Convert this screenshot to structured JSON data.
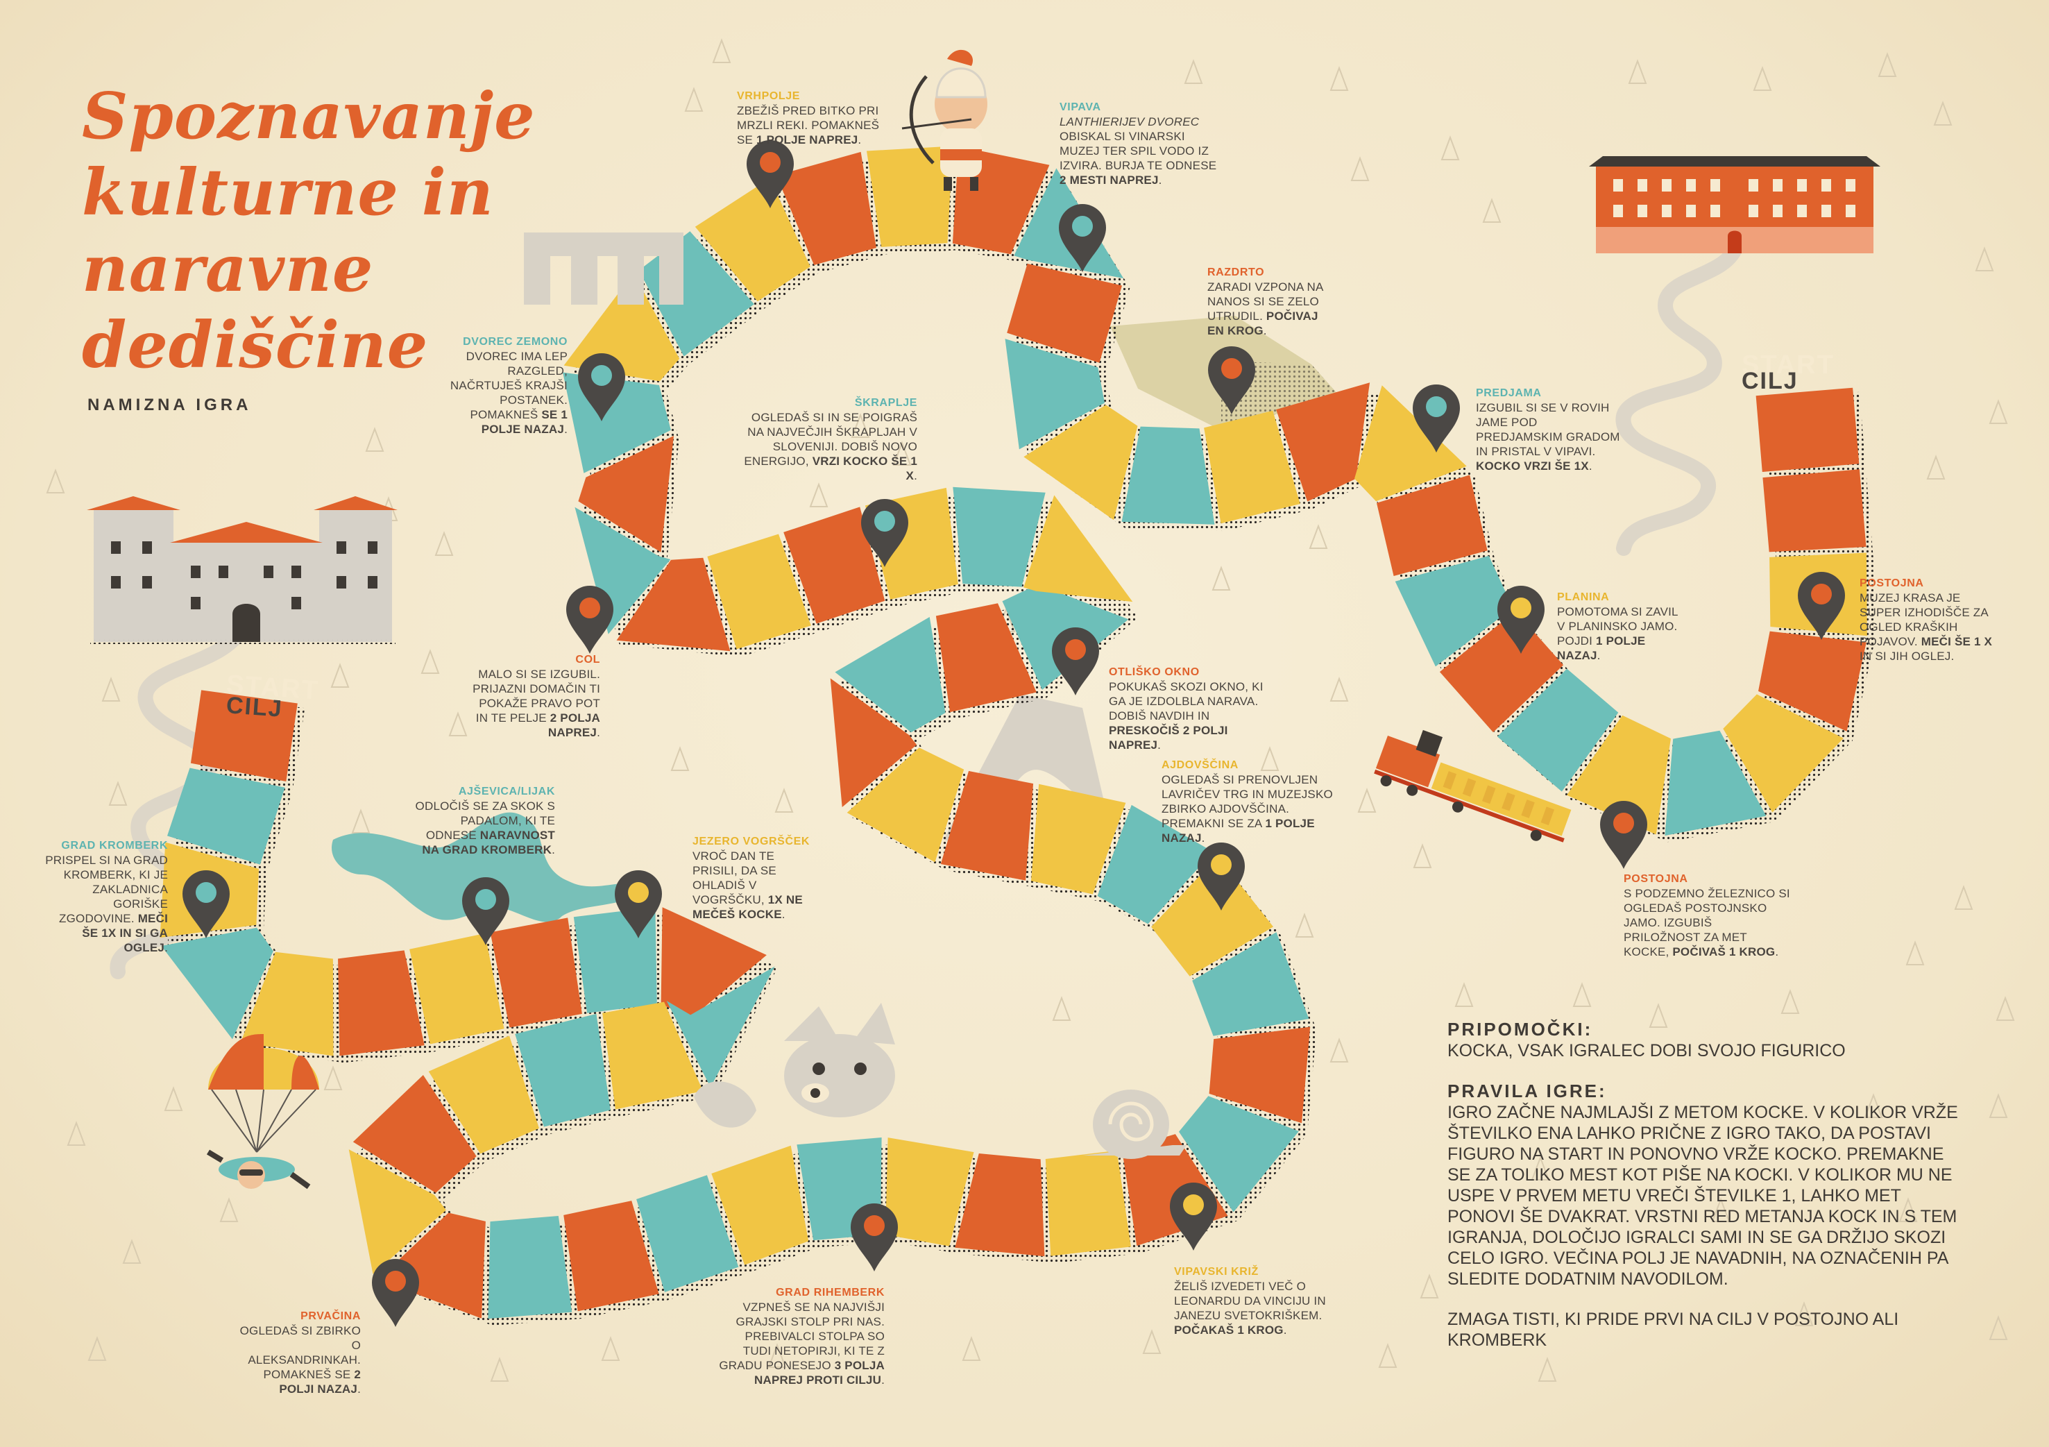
{
  "title": {
    "lines": [
      "Spoznavanje",
      "kulturne in",
      "naravne",
      "dediščine"
    ]
  },
  "subtitle": "NAMIZNA IGRA",
  "endpoints": {
    "start": "START",
    "finish": "CILJ"
  },
  "stops": [
    {
      "name": "VRHPOLJE",
      "desc": "ZBEŽIŠ PRED BITKO PRI MRZLI REKI. POMAKNEŠ SE ",
      "bold": "1 POLJE NAPREJ",
      "after": "."
    },
    {
      "name": "VIPAVA",
      "italic": "LANTHIERIJEV DVOREC",
      "desc": "OBISKAL SI VINARSKI MUZEJ TER SPIL VODO IZ IZVIRA. BURJA TE ODNESE ",
      "bold": "2 MESTI NAPREJ",
      "after": "."
    },
    {
      "name": "RAZDRTO",
      "desc": "ZARADI VZPONA NA NANOS SI SE ZELO UTRUDIL. ",
      "bold": "POČIVAJ EN KROG",
      "after": "."
    },
    {
      "name": "DVOREC ZEMONO",
      "desc": "DVOREC IMA LEP RAZGLED, NAČRTUJEŠ KRAJŠI POSTANEK. POMAKNEŠ ",
      "bold": "SE 1 POLJE NAZAJ",
      "after": "."
    },
    {
      "name": "ŠKRAPLJE",
      "desc": "OGLEDAŠ SI IN SE POIGRAŠ NA NAJVEČJIH ŠKRAPLJAH V SLOVENIJI. DOBIŠ NOVO ENERGIJO, ",
      "bold": "VRZI KOCKO ŠE 1 X",
      "after": "."
    },
    {
      "name": "PREDJAMA",
      "desc": "IZGUBIL SI SE V ROVIH JAME POD PREDJAMSKIM GRADOM IN PRISTAL V VIPAVI. ",
      "bold": "KOCKO VRZI ŠE 1X",
      "after": "."
    },
    {
      "name": "PLANINA",
      "desc": "POMOTOMA SI ZAVIL V PLANINSKO JAMO. POJDI ",
      "bold": "1 POLJE NAZAJ",
      "after": "."
    },
    {
      "name": "POSTOJNA",
      "desc": "MUZEJ KRASA JE SUPER IZHODIŠČE ZA OGLED KRAŠKIH POJAVOV. ",
      "bold": "MEČI ŠE 1 X",
      "after": " IN SI JIH OGLEJ."
    },
    {
      "name": "COL",
      "desc": "MALO SI SE IZGUBIL. PRIJAZNI DOMAČIN TI POKAŽE PRAVO POT IN TE PELJE ",
      "bold": "2 POLJA NAPREJ",
      "after": "."
    },
    {
      "name": "OTLIŠKO OKNO",
      "desc": "POKUKAŠ SKOZI OKNO, KI GA JE IZDOLBLA NARAVA. DOBIŠ NAVDIH IN ",
      "bold": "PRESKOČIŠ 2 POLJI NAPREJ",
      "after": "."
    },
    {
      "name": "AJDOVŠČINA",
      "desc": "OGLEDAŠ SI PRENOVLJEN LAVRIČEV TRG IN MUZEJSKO ZBIRKO AJDOVŠČINA. PREMAKNI SE ZA ",
      "bold": "1 POLJE NAZAJ",
      "after": "."
    },
    {
      "name": "AJŠEVICA/LIJAK",
      "desc": "ODLOČIŠ SE ZA SKOK S PADALOM, KI TE ODNESE ",
      "bold": "NARAVNOST NA GRAD KROMBERK",
      "after": "."
    },
    {
      "name": "JEZERO VOGRŠČEK",
      "desc": "VROČ DAN TE PRISILI, DA SE OHLADIŠ V VOGRŠČKU, ",
      "bold": "1X NE MEČEŠ KOCKE",
      "after": "."
    },
    {
      "name": "GRAD KROMBERK",
      "desc": "PRISPEL SI NA GRAD KROMBERK, KI JE ZAKLADNICA GORIŠKE ZGODOVINE. ",
      "bold": "MEČI ŠE 1X IN SI GA OGLEJ",
      "after": "."
    },
    {
      "name": "POSTOJNA",
      "desc": "S PODZEMNO ŽELEZNICO SI OGLEDAŠ POSTOJNSKO JAMO. IZGUBIŠ PRILOŽNOST ZA MET KOCKE, ",
      "bold": "POČIVAŠ 1 KROG",
      "after": "."
    },
    {
      "name": "PRVAČINA",
      "desc": "OGLEDAŠ SI ZBIRKO O ALEKSANDRINKAH. POMAKNEŠ SE ",
      "bold": "2 POLJI NAZAJ",
      "after": "."
    },
    {
      "name": "GRAD RIHEMBERK",
      "desc": "VZPNEŠ SE NA NAJVIŠJI GRAJSKI STOLP PRI NAS. PREBIVALCI STOLPA SO TUDI NETOPIRJI, KI TE Z GRADU PONESEJO ",
      "bold": "3 POLJA NAPREJ PROTI CILJU",
      "after": "."
    },
    {
      "name": "VIPAVSKI KRIŽ",
      "desc": "ŽELIŠ IZVEDETI VEČ O LEONARDU DA VINCIJU IN JANEZU SVETOKRIŠKEM. ",
      "bold": "POČAKAŠ 1 KROG",
      "after": "."
    }
  ],
  "rules": {
    "tools_heading": "PRIPOMOČKI:",
    "tools_text": "KOCKA, VSAK IGRALEC DOBI SVOJO FIGURICO",
    "rules_heading": "PRAVILA IGRE:",
    "rules_text": "IGRO ZAČNE NAJMLAJŠI Z METOM KOCKE. V KOLIKOR VRŽE ŠTEVILKO ENA LAHKO PRIČNE Z IGRO TAKO, DA POSTAVI FIGURO NA START IN PONOVNO VRŽE KOCKO. PREMAKNE SE ZA TOLIKO MEST KOT PIŠE NA KOCKI. V KOLIKOR MU NE USPE V PRVEM METU VREČI ŠTEVILKE 1, LAHKO MET PONOVI ŠE DVAKRAT. VRSTNI RED METANJA KOCK IN S TEM IGRANJA, DOLOČIJO IGRALCI SAMI IN SE GA DRŽIJO SKOZI CELO IGRO. VEČINA POLJ JE NAVADNIH, NA OZNAČENIH PA SLEDITE DODATNIM NAVODILOM.",
    "win_text": "ZMAGA TISTI, KI PRIDE PRVI NA CILJ V POSTOJNO ALI KROMBERK"
  },
  "colors": {
    "orange": "#e0622c",
    "teal": "#6dbfb9",
    "yellow": "#f1c544",
    "pin": "#4b4845",
    "cream": "#f3e8cc",
    "text": "#3f3a35"
  }
}
